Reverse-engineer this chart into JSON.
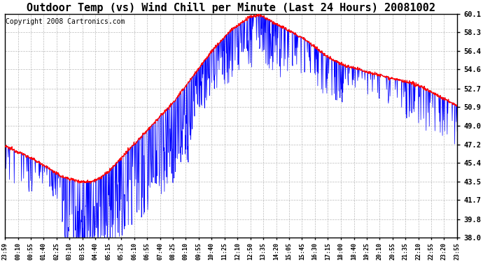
{
  "title": "Outdoor Temp (vs) Wind Chill per Minute (Last 24 Hours) 20081002",
  "copyright": "Copyright 2008 Cartronics.com",
  "yticks": [
    38.0,
    39.8,
    41.7,
    43.5,
    45.4,
    47.2,
    49.0,
    50.9,
    52.7,
    54.6,
    56.4,
    58.3,
    60.1
  ],
  "ymin": 38.0,
  "ymax": 60.1,
  "xtick_labels": [
    "23:59",
    "00:10",
    "00:55",
    "01:40",
    "02:25",
    "03:10",
    "03:55",
    "04:40",
    "05:15",
    "05:25",
    "06:10",
    "06:55",
    "07:40",
    "08:25",
    "09:10",
    "09:55",
    "10:40",
    "11:25",
    "12:10",
    "12:50",
    "13:35",
    "14:20",
    "15:05",
    "15:45",
    "16:30",
    "17:15",
    "18:00",
    "18:40",
    "19:25",
    "20:10",
    "20:55",
    "21:35",
    "22:10",
    "22:55",
    "23:20",
    "23:55"
  ],
  "outdoor_color": "#ff0000",
  "windchill_color": "#0000ff",
  "bg_color": "#ffffff",
  "grid_color": "#aaaaaa",
  "title_fontsize": 11,
  "copyright_fontsize": 7,
  "outdoor_base_keypoints_x": [
    0,
    1,
    2,
    3,
    4,
    4.5,
    5,
    5.5,
    6,
    7,
    8,
    9,
    10,
    11,
    12,
    13,
    13.5,
    14,
    15,
    16,
    17,
    18,
    19,
    20,
    21,
    22,
    23,
    24
  ],
  "outdoor_base_keypoints_y": [
    47.0,
    46.2,
    45.2,
    44.0,
    43.5,
    43.5,
    43.8,
    44.5,
    45.5,
    47.5,
    49.5,
    51.5,
    54.0,
    56.5,
    58.5,
    59.8,
    60.0,
    59.5,
    58.5,
    57.5,
    56.0,
    55.0,
    54.5,
    54.0,
    53.5,
    53.0,
    52.0,
    51.0
  ]
}
